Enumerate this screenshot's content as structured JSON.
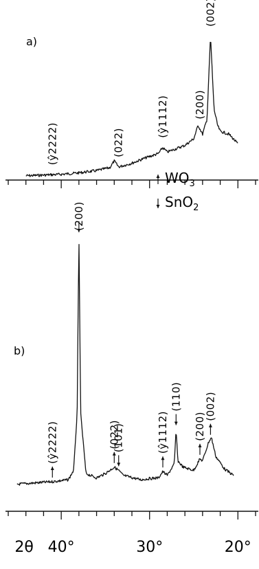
{
  "chart_data": [
    {
      "type": "line",
      "panel_label": "a)",
      "x_unit": "2θ (degrees)",
      "xlim": [
        46,
        18
      ],
      "x": [
        44,
        42,
        40,
        38,
        36,
        34.5,
        34,
        33.5,
        32,
        30.5,
        29,
        28.5,
        28,
        26,
        25,
        24.5,
        24,
        23.5,
        23.1,
        22.7,
        22.3,
        22,
        21,
        20
      ],
      "y": [
        2,
        3,
        4,
        6,
        9,
        13,
        22,
        14,
        19,
        26,
        32,
        40,
        34,
        43,
        52,
        70,
        58,
        78,
        190,
        92,
        70,
        62,
        58,
        45
      ],
      "peaks": [
        {
          "label": "(ŷ2222)",
          "x": 41.0
        },
        {
          "label": "(022)",
          "x": 33.5
        },
        {
          "label": "(ŷ1112)",
          "x": 28.5
        },
        {
          "label": "(200)",
          "x": 24.3
        },
        {
          "label": "(002)",
          "x": 23.1
        }
      ]
    },
    {
      "type": "line",
      "panel_label": "b)",
      "x_unit": "2θ (degrees)",
      "xlim": [
        46,
        18
      ],
      "xticks": [
        "2θ",
        "40°",
        "30°",
        "20°"
      ],
      "legend": [
        {
          "marker": "up-arrow",
          "label": "WO3"
        },
        {
          "marker": "down-arrow",
          "label": "SnO2"
        }
      ],
      "x": [
        45,
        43,
        41,
        39.2,
        38.6,
        38.2,
        38.0,
        37.8,
        37.2,
        36,
        35,
        34,
        33.5,
        33,
        31,
        30,
        29,
        28.5,
        28,
        27.2,
        27,
        26.8,
        26.2,
        25,
        24.3,
        24,
        23.3,
        23,
        22.5,
        21.5,
        20.5
      ],
      "y": [
        8,
        10,
        12,
        15,
        30,
        120,
        400,
        120,
        25,
        18,
        25,
        35,
        30,
        22,
        15,
        17,
        18,
        28,
        22,
        40,
        95,
        45,
        35,
        30,
        48,
        45,
        75,
        82,
        52,
        32,
        22
      ],
      "peaks": [
        {
          "label": "(ŷ2222)",
          "x": 41.0,
          "phase": "WO3"
        },
        {
          "label": "(200)",
          "x": 38.0,
          "phase": "SnO2"
        },
        {
          "label": "(022)",
          "x": 34.0,
          "phase": "WO3"
        },
        {
          "label": "(101)",
          "x": 33.5,
          "phase": "SnO2"
        },
        {
          "label": "(ŷ1112)",
          "x": 28.5,
          "phase": "WO3"
        },
        {
          "label": "(110)",
          "x": 27.0,
          "phase": "SnO2"
        },
        {
          "label": "(200)",
          "x": 24.3,
          "phase": "WO3"
        },
        {
          "label": "(002)",
          "x": 23.1,
          "phase": "WO3"
        }
      ]
    }
  ]
}
